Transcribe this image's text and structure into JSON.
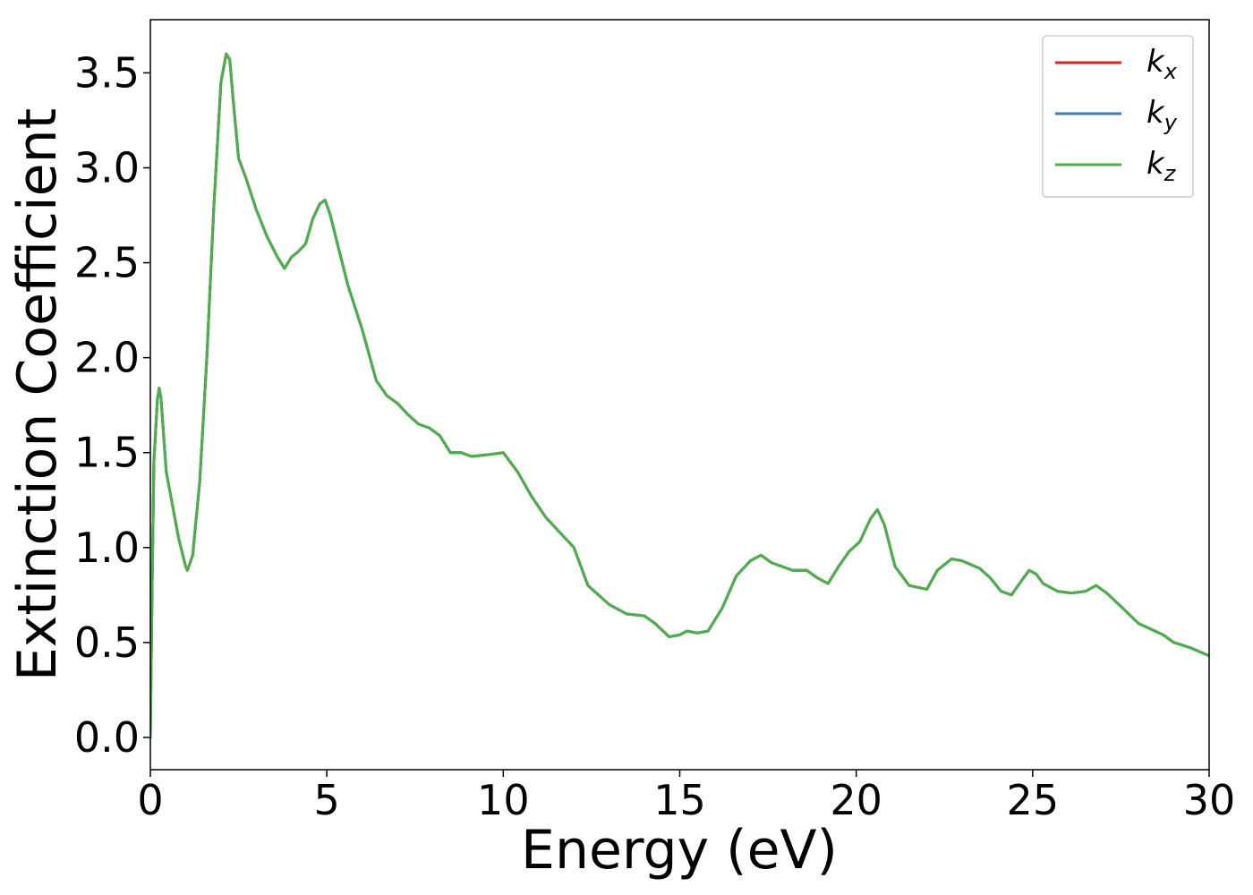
{
  "chart_data": {
    "type": "line",
    "xlabel": "Energy (eV)",
    "ylabel": "Extinction Coefficient",
    "xlim": [
      0,
      30
    ],
    "ylim": [
      -0.17,
      3.78
    ],
    "xticks": [
      0,
      5,
      10,
      15,
      20,
      25,
      30
    ],
    "xtick_labels": [
      "0",
      "5",
      "10",
      "15",
      "20",
      "25",
      "30"
    ],
    "yticks": [
      0.0,
      0.5,
      1.0,
      1.5,
      2.0,
      2.5,
      3.0,
      3.5
    ],
    "ytick_labels": [
      "0.0",
      "0.5",
      "1.0",
      "1.5",
      "2.0",
      "2.5",
      "3.0",
      "3.5"
    ],
    "grid": false,
    "legend_position": "top-right",
    "series": [
      {
        "name": "k",
        "subscript": "x",
        "color": "#e41a1c"
      },
      {
        "name": "k",
        "subscript": "y",
        "color": "#377eb8"
      },
      {
        "name": "k",
        "subscript": "z",
        "color": "#4daf4a"
      }
    ],
    "x": [
      0,
      0.05,
      0.1,
      0.2,
      0.25,
      0.3,
      0.45,
      0.6,
      0.8,
      1.0,
      1.05,
      1.2,
      1.4,
      1.6,
      1.8,
      2.0,
      2.15,
      2.25,
      2.35,
      2.5,
      2.7,
      3.0,
      3.3,
      3.6,
      3.8,
      4.0,
      4.2,
      4.4,
      4.6,
      4.8,
      4.95,
      5.1,
      5.3,
      5.6,
      6.0,
      6.4,
      6.7,
      7.0,
      7.3,
      7.6,
      7.9,
      8.2,
      8.5,
      8.8,
      9.1,
      9.6,
      10.0,
      10.4,
      10.8,
      11.2,
      11.6,
      12.0,
      12.4,
      13.0,
      13.5,
      14.0,
      14.3,
      14.7,
      15.0,
      15.2,
      15.5,
      15.8,
      16.2,
      16.6,
      17.0,
      17.3,
      17.6,
      17.9,
      18.2,
      18.6,
      18.9,
      19.2,
      19.5,
      19.8,
      20.1,
      20.4,
      20.6,
      20.8,
      21.1,
      21.5,
      22.0,
      22.3,
      22.7,
      23.0,
      23.5,
      23.8,
      24.1,
      24.4,
      24.7,
      24.9,
      25.1,
      25.3,
      25.7,
      26.1,
      26.5,
      26.8,
      27.1,
      27.5,
      28.0,
      28.7,
      29.0,
      29.5,
      30.0
    ],
    "y": [
      0.0,
      0.8,
      1.45,
      1.78,
      1.84,
      1.79,
      1.4,
      1.25,
      1.05,
      0.9,
      0.88,
      0.96,
      1.35,
      2.0,
      2.8,
      3.45,
      3.6,
      3.57,
      3.35,
      3.05,
      2.95,
      2.78,
      2.64,
      2.53,
      2.47,
      2.53,
      2.56,
      2.6,
      2.73,
      2.81,
      2.83,
      2.75,
      2.6,
      2.38,
      2.15,
      1.88,
      1.8,
      1.76,
      1.7,
      1.65,
      1.63,
      1.59,
      1.5,
      1.5,
      1.48,
      1.49,
      1.5,
      1.4,
      1.27,
      1.16,
      1.08,
      1.0,
      0.8,
      0.7,
      0.65,
      0.64,
      0.6,
      0.53,
      0.54,
      0.56,
      0.55,
      0.56,
      0.68,
      0.85,
      0.93,
      0.96,
      0.92,
      0.9,
      0.88,
      0.88,
      0.84,
      0.81,
      0.9,
      0.98,
      1.03,
      1.15,
      1.2,
      1.12,
      0.9,
      0.8,
      0.78,
      0.88,
      0.94,
      0.93,
      0.89,
      0.84,
      0.77,
      0.75,
      0.83,
      0.88,
      0.86,
      0.81,
      0.77,
      0.76,
      0.77,
      0.8,
      0.76,
      0.69,
      0.6,
      0.54,
      0.5,
      0.47,
      0.43
    ]
  }
}
